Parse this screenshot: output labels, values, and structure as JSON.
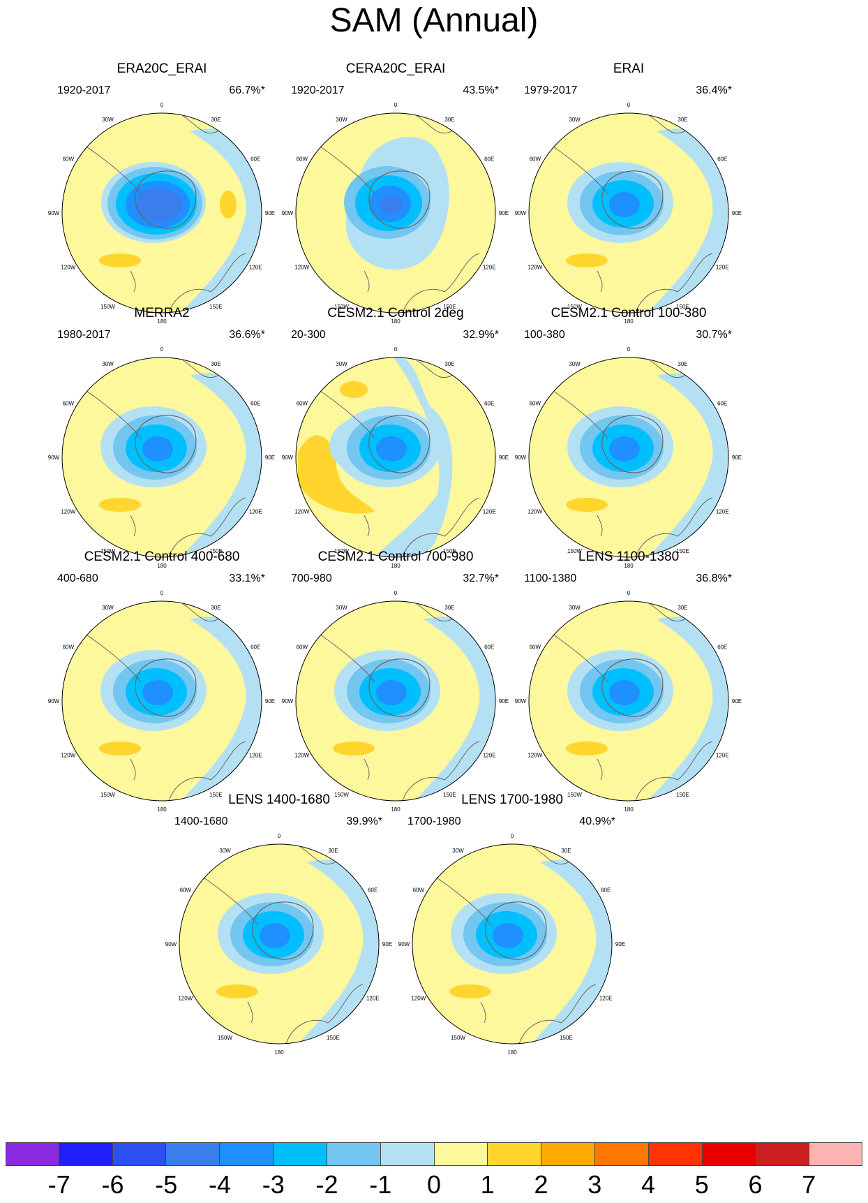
{
  "title": "SAM (Annual)",
  "longitude_labels": {
    "deg0": "0",
    "deg30e": "30E",
    "deg60e": "60E",
    "deg90e": "90E",
    "deg120e": "120E",
    "deg150e": "150E",
    "deg180": "180",
    "deg150w": "150W",
    "deg120w": "120W",
    "deg90w": "90W",
    "deg60w": "60W",
    "deg30w": "30W"
  },
  "colors": {
    "land_outline": "#666666",
    "levels": [
      "#8a2be2",
      "#1e1eff",
      "#2e4ff0",
      "#3a7ded",
      "#1e90ff",
      "#00bfff",
      "#73c6f0",
      "#b4e0f4",
      "#fef89c",
      "#ffd52e",
      "#ffaa00",
      "#ff7700",
      "#ff3300",
      "#e80000",
      "#cc2020",
      "#ffb4b4"
    ]
  },
  "panels": [
    {
      "title": "ERA20C_ERAI",
      "years": "1920-2017",
      "variance": "66.7%*",
      "pattern": "strong"
    },
    {
      "title": "CERA20C_ERAI",
      "years": "1920-2017",
      "variance": "43.5%*",
      "pattern": "wide"
    },
    {
      "title": "ERAI",
      "years": "1979-2017",
      "variance": "36.4%*",
      "pattern": "standard"
    },
    {
      "title": "MERRA2",
      "years": "1980-2017",
      "variance": "36.6%*",
      "pattern": "standard"
    },
    {
      "title": "CESM2.1 Control 2deg",
      "years": "20-300",
      "variance": "32.9%*",
      "pattern": "wave"
    },
    {
      "title": "CESM2.1 Control 100-380",
      "years": "100-380",
      "variance": "30.7%*",
      "pattern": "standard"
    },
    {
      "title": "CESM2.1 Control 400-680",
      "years": "400-680",
      "variance": "33.1%*",
      "pattern": "standard"
    },
    {
      "title": "CESM2.1 Control 700-980",
      "years": "700-980",
      "variance": "32.7%*",
      "pattern": "standard"
    },
    {
      "title": "LENS 1100-1380",
      "years": "1100-1380",
      "variance": "36.8%*",
      "pattern": "standard"
    },
    {
      "title": "LENS 1400-1680",
      "years": "1400-1680",
      "variance": "39.9%*",
      "pattern": "standard"
    },
    {
      "title": "LENS 1700-1980",
      "years": "1700-1980",
      "variance": "40.9%*",
      "pattern": "standard"
    }
  ],
  "colorbar": {
    "labels": [
      "-7",
      "-6",
      "-5",
      "-4",
      "-3",
      "-2",
      "-1",
      "0",
      "1",
      "2",
      "3",
      "4",
      "5",
      "6",
      "7"
    ]
  }
}
